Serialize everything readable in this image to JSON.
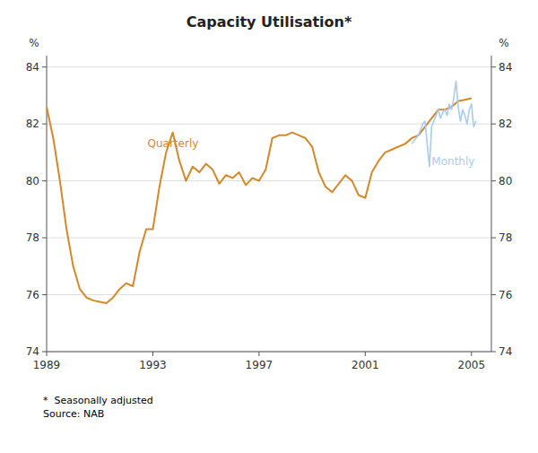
{
  "chart_data": {
    "type": "line",
    "title": "Capacity Utilisation*",
    "ylabel": "%",
    "y2label": "%",
    "footnote": "*  Seasonally adjusted\nSource: NAB",
    "xlim": [
      1989.0,
      2005.75
    ],
    "xticks": [
      1989,
      1993,
      1997,
      2001,
      2005
    ],
    "ylim": [
      74,
      84.4
    ],
    "yticks": [
      74,
      76,
      78,
      80,
      82,
      84
    ],
    "y2lim": [
      74,
      84.4
    ],
    "y2ticks": [
      74,
      76,
      78,
      80,
      82,
      84
    ],
    "grid": true,
    "series": [
      {
        "color": "#D4882A",
        "x": [
          1989.0,
          1989.25,
          1989.5,
          1989.75,
          1990.0,
          1990.25,
          1990.5,
          1990.75,
          1991.0,
          1991.25,
          1991.5,
          1991.75,
          1992.0,
          1992.25,
          1992.5,
          1992.75,
          1993.0,
          1993.25,
          1993.5,
          1993.75,
          1994.0,
          1994.25,
          1994.5,
          1994.75,
          1995.0,
          1995.25,
          1995.5,
          1995.75,
          1996.0,
          1996.25,
          1996.5,
          1996.75,
          1997.0,
          1997.25,
          1997.5,
          1997.75,
          1998.0,
          1998.25,
          1998.5,
          1998.75,
          1999.0,
          1999.25,
          1999.5,
          1999.75,
          2000.0,
          2000.25,
          2000.5,
          2000.75,
          2001.0,
          2001.25,
          2001.5,
          2001.75,
          2002.0,
          2002.25,
          2002.5,
          2002.75,
          2003.0,
          2003.25,
          2003.5,
          2003.75,
          2004.0,
          2004.25,
          2004.5,
          2004.75,
          2005.0
        ],
        "values": [
          82.6,
          81.5,
          80.0,
          78.3,
          77.0,
          76.2,
          75.9,
          75.8,
          75.75,
          75.7,
          75.9,
          76.2,
          76.4,
          76.3,
          77.5,
          78.3,
          78.3,
          79.8,
          81.0,
          81.7,
          80.7,
          80.0,
          80.5,
          80.3,
          80.6,
          80.4,
          79.9,
          80.2,
          80.1,
          80.3,
          79.85,
          80.1,
          80.0,
          80.4,
          81.5,
          81.6,
          81.6,
          81.7,
          81.6,
          81.5,
          81.2,
          80.3,
          79.8,
          79.6,
          79.9,
          80.2,
          80.0,
          79.5,
          79.4,
          80.3,
          80.7,
          81.0,
          81.1,
          81.2,
          81.3,
          81.5,
          81.6,
          81.9,
          82.2,
          82.5,
          82.5,
          82.6,
          82.8,
          82.85,
          82.9
        ]
      },
      {
        "color": "#A8CCEE",
        "x": [
          2002.75,
          2002.833,
          2002.917,
          2003.0,
          2003.083,
          2003.167,
          2003.25,
          2003.333,
          2003.417,
          2003.5,
          2003.583,
          2003.667,
          2003.75,
          2003.833,
          2003.917,
          2004.0,
          2004.083,
          2004.167,
          2004.25,
          2004.333,
          2004.417,
          2004.5,
          2004.583,
          2004.667,
          2004.75,
          2004.833,
          2004.917,
          2005.0,
          2005.083,
          2005.167
        ],
        "values": [
          81.3,
          81.4,
          81.5,
          81.6,
          81.8,
          82.0,
          82.1,
          81.3,
          80.5,
          81.9,
          82.1,
          82.3,
          82.5,
          82.2,
          82.4,
          82.5,
          82.3,
          82.7,
          82.5,
          82.9,
          83.5,
          82.6,
          82.1,
          82.5,
          82.3,
          82.0,
          82.5,
          82.7,
          81.9,
          82.1
        ]
      }
    ],
    "annotations": [
      {
        "text": "Quarterly",
        "x": 1992.8,
        "y": 81.2,
        "color": "#D4882A"
      },
      {
        "text": "Monthly",
        "x": 2003.5,
        "y": 80.55,
        "color": "#A8CCEE"
      }
    ]
  }
}
